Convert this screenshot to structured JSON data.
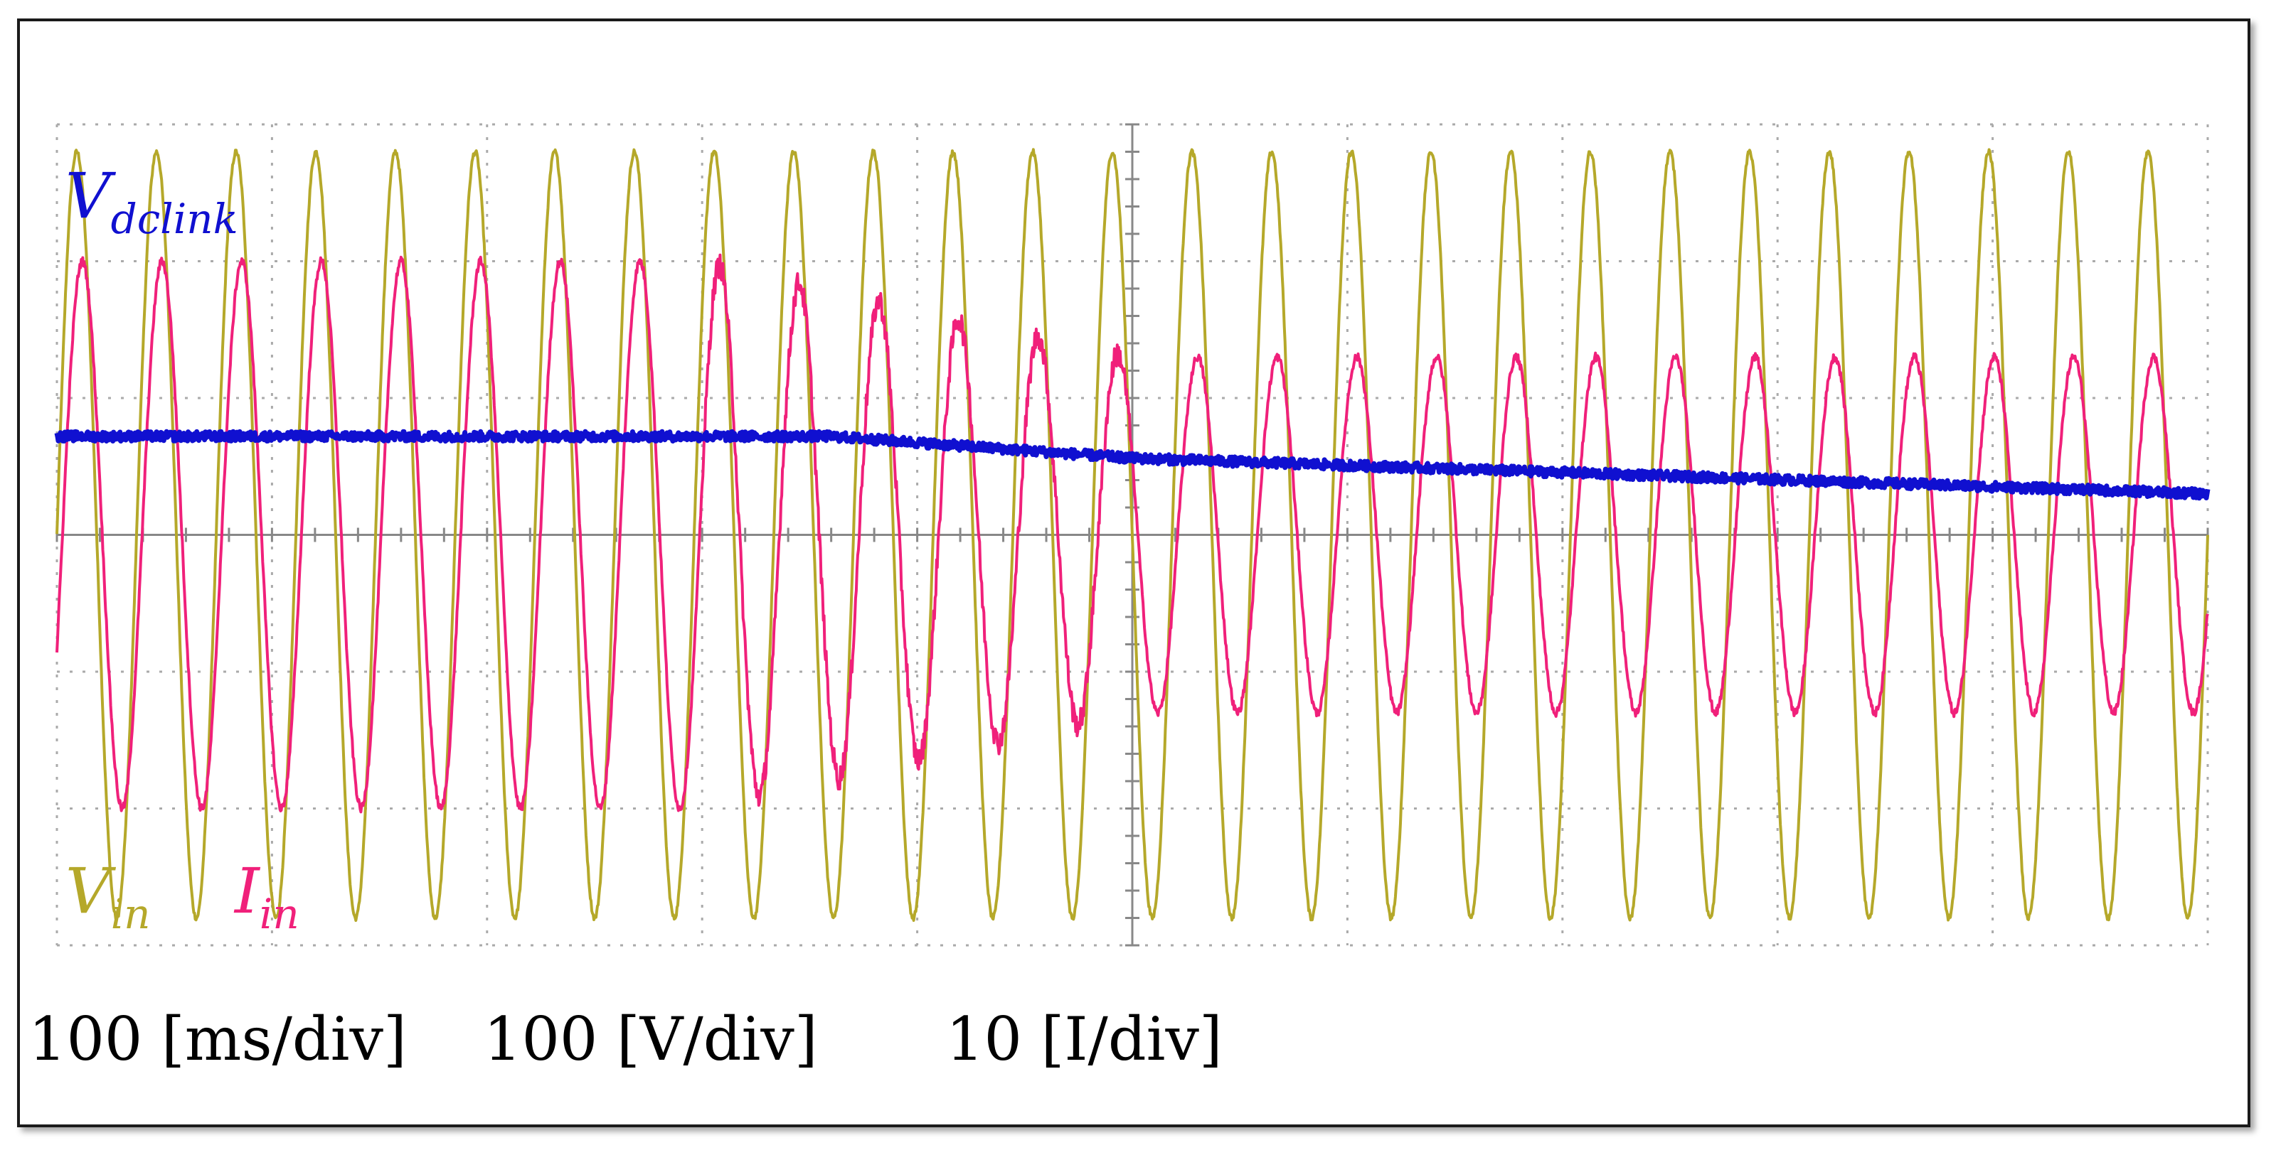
{
  "chart_data": {
    "type": "line",
    "title": "",
    "scales": {
      "time": "100 [ms/div]",
      "voltage": "100 [V/div]",
      "current": "10 [I/div]"
    },
    "grid": true,
    "x_divisions": 10,
    "y_divisions": 6,
    "series": [
      {
        "name": "Vdclink",
        "label_main": "V",
        "label_sub": "dclink",
        "color": "#1010d0",
        "unit": "V",
        "description_points_div_y": [
          [
            0,
            3.72
          ],
          [
            3.6,
            3.72
          ],
          [
            5.0,
            3.56
          ],
          [
            10,
            3.3
          ]
        ]
      },
      {
        "name": "Vin",
        "label_main": "V",
        "label_sub": "in",
        "color": "#b5a82a",
        "unit": "V",
        "amplitude_div": 2.8,
        "cycles": 27,
        "phase_deg": 0
      },
      {
        "name": "Iin",
        "label_main": "I",
        "label_sub": "in",
        "color": "#f0207a",
        "unit": "A",
        "amplitude_div_before": 2.0,
        "amplitude_div_after": 1.3,
        "change_start_div": 3.0,
        "change_end_div": 5.0,
        "cycles": 27,
        "phase_deg": -25
      }
    ]
  }
}
